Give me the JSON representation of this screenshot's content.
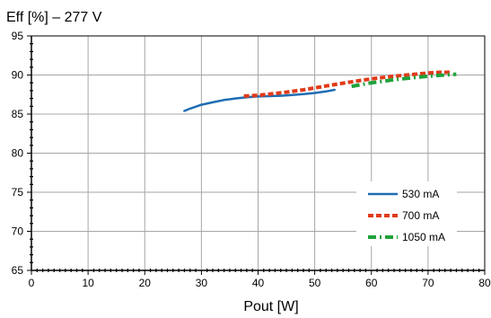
{
  "chart_data": {
    "type": "line",
    "title": "Eff [%] – 277 V",
    "xlabel": "Pout [W]",
    "ylabel": "",
    "xlim": [
      0,
      80
    ],
    "ylim": [
      65,
      95
    ],
    "x_ticks": [
      0,
      10,
      20,
      30,
      40,
      50,
      60,
      70,
      80
    ],
    "y_ticks": [
      65,
      70,
      75,
      80,
      85,
      90,
      95
    ],
    "grid": true,
    "legend_position": "bottom-right",
    "series": [
      {
        "name": "530 mA",
        "color": "#1f6db3",
        "style": "solid",
        "points": [
          [
            27,
            85.4
          ],
          [
            28,
            85.7
          ],
          [
            30,
            86.2
          ],
          [
            32,
            86.5
          ],
          [
            34,
            86.8
          ],
          [
            36,
            87.0
          ],
          [
            38,
            87.15
          ],
          [
            40,
            87.25
          ],
          [
            42,
            87.3
          ],
          [
            44,
            87.35
          ],
          [
            46,
            87.45
          ],
          [
            48,
            87.55
          ],
          [
            50,
            87.7
          ],
          [
            52,
            87.9
          ],
          [
            53.5,
            88.1
          ]
        ]
      },
      {
        "name": "700 mA",
        "color": "#e03a19",
        "style": "dashed",
        "points": [
          [
            37.5,
            87.3
          ],
          [
            40,
            87.4
          ],
          [
            42,
            87.55
          ],
          [
            45,
            87.8
          ],
          [
            48,
            88.1
          ],
          [
            50,
            88.35
          ],
          [
            52,
            88.6
          ],
          [
            55,
            88.95
          ],
          [
            58,
            89.3
          ],
          [
            61,
            89.6
          ],
          [
            64,
            89.85
          ],
          [
            67,
            90.05
          ],
          [
            70,
            90.25
          ],
          [
            72,
            90.35
          ],
          [
            74,
            90.35
          ]
        ]
      },
      {
        "name": "1050 mA",
        "color": "#1fa23a",
        "style": "dashdot",
        "points": [
          [
            56.5,
            88.55
          ],
          [
            58,
            88.75
          ],
          [
            60,
            89.0
          ],
          [
            62,
            89.2
          ],
          [
            64,
            89.4
          ],
          [
            66,
            89.55
          ],
          [
            68,
            89.7
          ],
          [
            70,
            89.85
          ],
          [
            72,
            89.95
          ],
          [
            74,
            90.05
          ],
          [
            75,
            90.1
          ]
        ]
      }
    ]
  }
}
